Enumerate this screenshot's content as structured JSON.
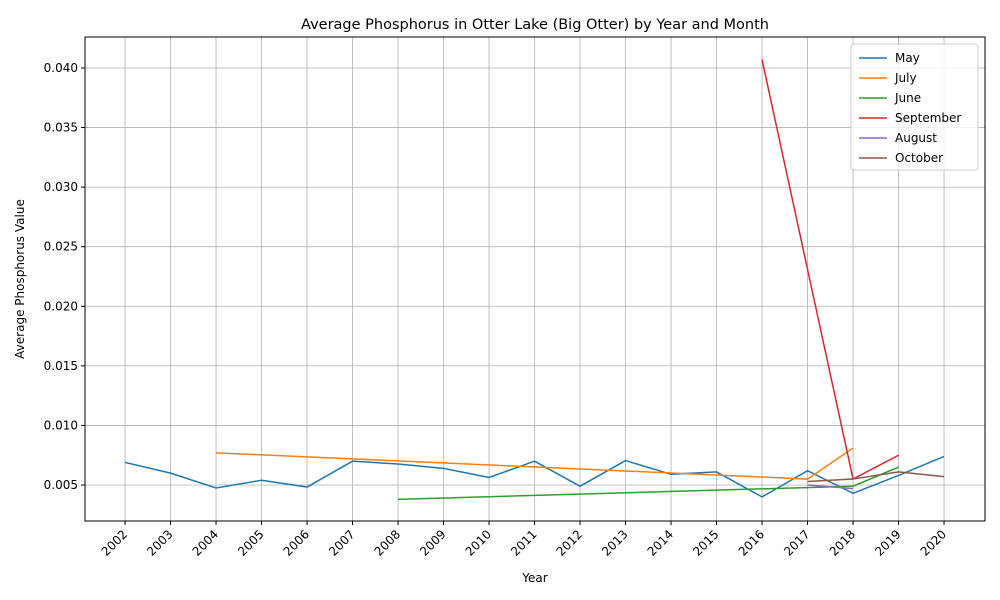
{
  "chart_data": {
    "type": "line",
    "title": "Average Phosphorus in Otter Lake (Big Otter) by Year and Month",
    "x_label": "Year",
    "y_label": "Average Phosphorus Value",
    "xlim": [
      2001.12,
      2020.9
    ],
    "ylim": [
      0.00198,
      0.0426
    ],
    "xticks": [
      2002,
      2003,
      2004,
      2005,
      2006,
      2007,
      2008,
      2009,
      2010,
      2011,
      2012,
      2013,
      2014,
      2015,
      2016,
      2017,
      2018,
      2019,
      2020
    ],
    "yticks": [
      0.005,
      {
        "value": 0.01,
        "label": "0.010"
      },
      0.015,
      {
        "value": 0.02,
        "label": "0.020"
      },
      0.025,
      {
        "value": 0.03,
        "label": "0.030"
      },
      0.035,
      {
        "value": 0.04,
        "label": "0.040"
      }
    ],
    "grid": true,
    "legend": "upper-right",
    "series": [
      {
        "name": "May",
        "color": "#1f77b4",
        "x": [
          2002,
          2003,
          2004,
          2005,
          2006,
          2007,
          2008,
          2009,
          2010,
          2011,
          2012,
          2013,
          2014,
          2015,
          2016,
          2017,
          2018,
          2019,
          2020
        ],
        "values": [
          0.0069,
          0.006,
          0.00475,
          0.0054,
          0.00483,
          0.007,
          0.00676,
          0.0064,
          0.00563,
          0.007,
          0.0049,
          0.00705,
          0.0059,
          0.0061,
          0.004,
          0.0062,
          0.0043,
          0.0058,
          0.0074
        ]
      },
      {
        "name": "July",
        "color": "#ff7f0e",
        "x": [
          2004,
          2017,
          2018
        ],
        "values": [
          0.0077,
          0.0055,
          0.0081
        ]
      },
      {
        "name": "June",
        "color": "#2ca02c",
        "x": [
          2008,
          2018,
          2019
        ],
        "values": [
          0.0038,
          0.0049,
          0.0065
        ]
      },
      {
        "name": "September",
        "color": "#d62728",
        "x": [
          2016,
          2018,
          2019
        ],
        "values": [
          0.0407,
          0.0055,
          0.0075
        ]
      },
      {
        "name": "August",
        "color": "#9467bd",
        "x": [
          2017,
          2018
        ],
        "values": [
          0.005,
          0.0047
        ]
      },
      {
        "name": "October",
        "color": "#8c564b",
        "x": [
          2017,
          2018,
          2019,
          2020
        ],
        "values": [
          0.0053,
          0.0055,
          0.0061,
          0.0057
        ]
      }
    ]
  }
}
